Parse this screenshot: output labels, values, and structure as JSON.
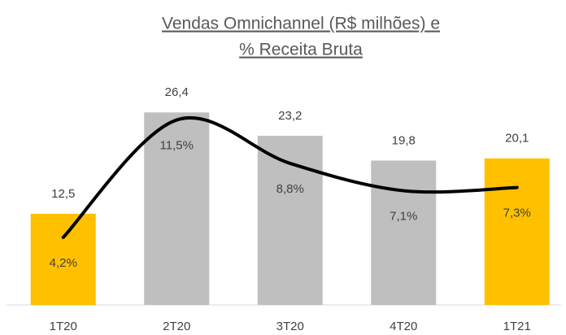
{
  "chart_data": {
    "type": "bar",
    "title": [
      "Vendas Omnichannel (R$ milhões) e",
      "% Receita Bruta"
    ],
    "categories": [
      "1T20",
      "2T20",
      "3T20",
      "4T20",
      "1T21"
    ],
    "ylim": [
      0,
      30
    ],
    "y2lim": [
      0,
      13.6
    ],
    "series": [
      {
        "type": "bar",
        "colors": [
          "#FFC000",
          "#BFBFBF",
          "#BFBFBF",
          "#BFBFBF",
          "#FFC000"
        ],
        "values": [
          12.5,
          26.4,
          23.2,
          19.8,
          20.1
        ],
        "value_labels": [
          "12,5",
          "26,4",
          "23,2",
          "19,8",
          "20,1"
        ]
      },
      {
        "type": "line",
        "axis": "y2",
        "color": "#000000",
        "smooth": true,
        "values": [
          4.2,
          11.5,
          8.8,
          7.1,
          7.3
        ],
        "value_labels": [
          "4,2%",
          "11,5%",
          "8,8%",
          "7,1%",
          "7,3%"
        ]
      }
    ]
  }
}
